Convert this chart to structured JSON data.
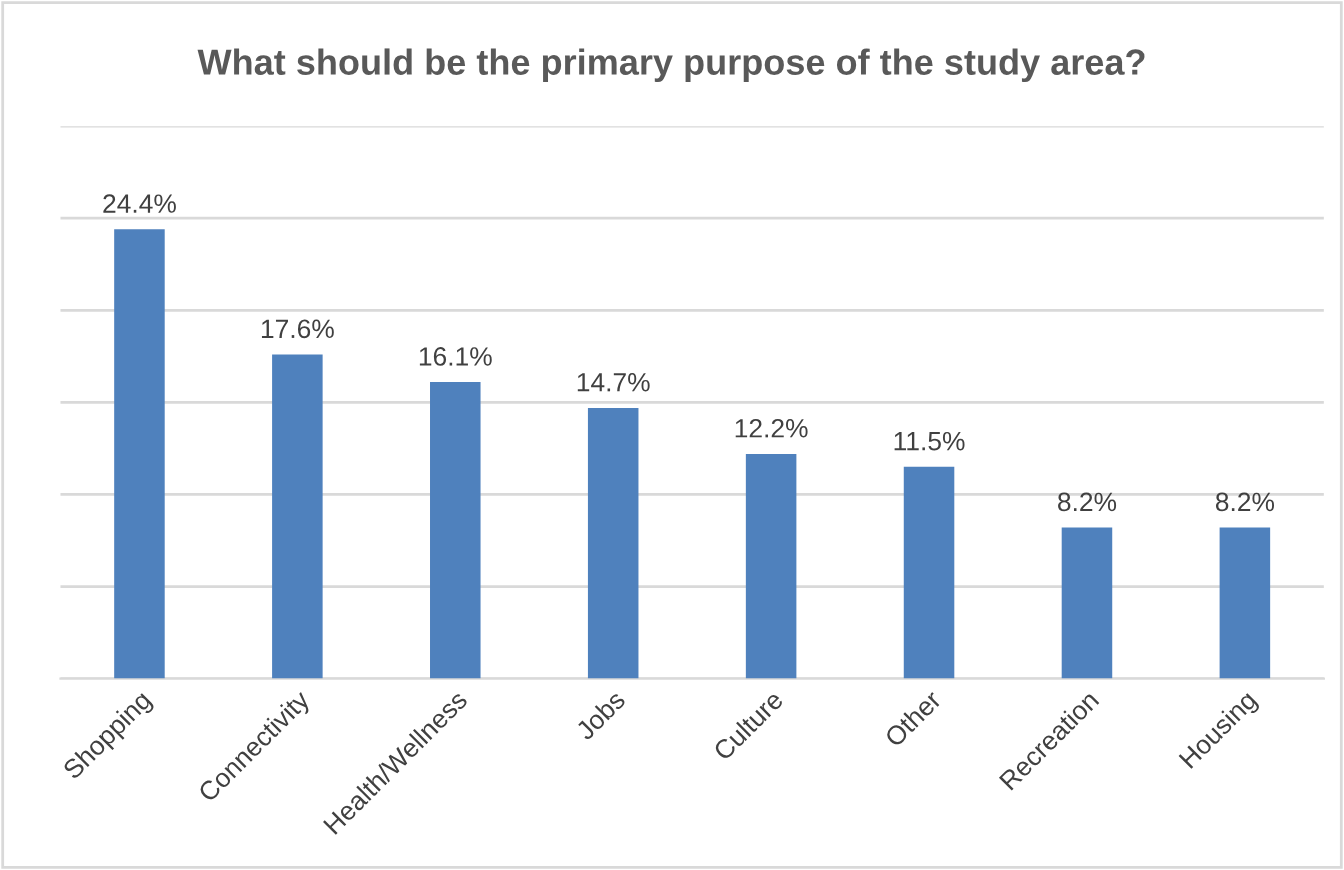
{
  "chart_data": {
    "type": "bar",
    "title": "What should be the primary purpose of the study area?",
    "categories": [
      "Shopping",
      "Connectivity",
      "Health/Wellness",
      "Jobs",
      "Culture",
      "Other",
      "Recreation",
      "Housing"
    ],
    "values": [
      24.4,
      17.6,
      16.1,
      14.7,
      12.2,
      11.5,
      8.2,
      8.2
    ],
    "value_labels": [
      "24.4%",
      "17.6%",
      "16.1%",
      "14.7%",
      "12.2%",
      "11.5%",
      "8.2%",
      "8.2%"
    ],
    "color": "#4f81bd",
    "ylim": [
      0,
      30
    ],
    "yticks": [
      {
        "value": 0,
        "label": null
      },
      {
        "value": 5,
        "label": null
      },
      {
        "value": 10,
        "label": null
      },
      {
        "value": 15,
        "label": null
      },
      {
        "value": 20,
        "label": null
      },
      {
        "value": 25,
        "label": null
      },
      {
        "value": 30,
        "label": null
      }
    ],
    "grid": "y",
    "tick_labels": "x"
  }
}
